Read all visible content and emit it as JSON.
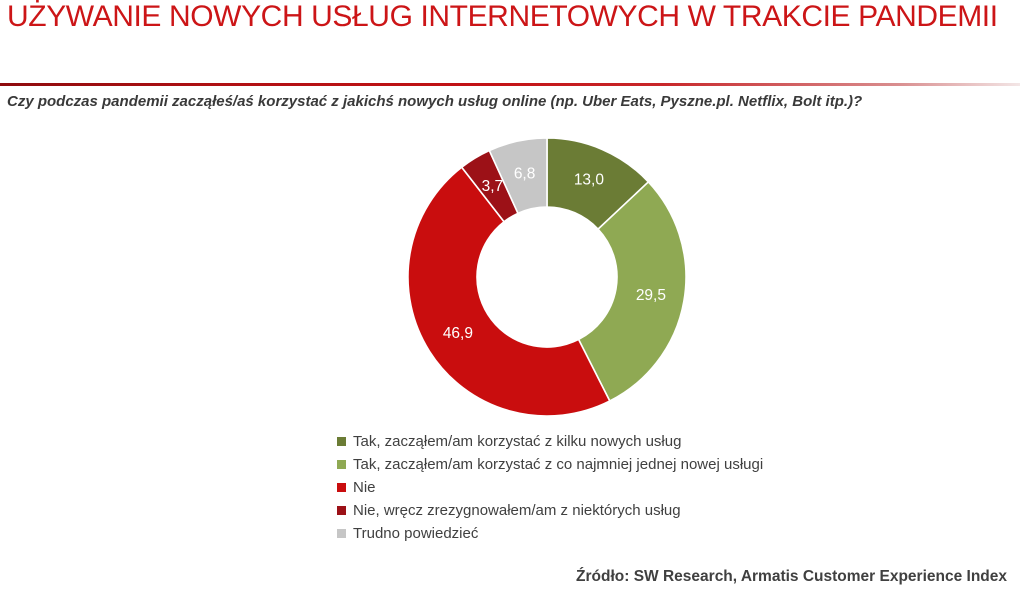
{
  "header": {
    "title": "UŻYWANIE NOWYCH USŁUG INTERNETOWYCH W TRAKCIE PANDEMII"
  },
  "question": "Czy podczas pandemii zacząłeś/aś korzystać z jakichś nowych usług online (np. Uber Eats, Pyszne.pl. Netflix, Bolt itp.)?",
  "source": "Źródło: SW Research, Armatis Customer Experience Index",
  "colors": {
    "title_red": "#cc1517",
    "divider_left": "#8e0b0d",
    "divider_right": "#f3e6e6",
    "text_dark": "#3a3a3a"
  },
  "chart_data": {
    "type": "pie",
    "subtype": "donut",
    "title": "",
    "start_angle_deg": 0,
    "direction": "clockwise",
    "inner_radius_ratio": 0.5,
    "legend_position": "bottom-left",
    "value_label_color": "#ffffff",
    "categories": [
      "Tak, zacząłem/am korzystać z kilku nowych usług",
      "Tak, zacząłem/am korzystać z co najmniej jednej nowej usługi",
      "Nie",
      "Nie, wręcz zrezygnowałem/am z niektórych usług",
      "Trudno powiedzieć"
    ],
    "values": [
      13.0,
      29.5,
      46.9,
      3.7,
      6.8
    ],
    "slices": [
      {
        "label": "Tak, zacząłem/am korzystać z kilku nowych usług",
        "value": 13.0,
        "display": "13,0",
        "color": "#6b7c35"
      },
      {
        "label": "Tak, zacząłem/am korzystać z co najmniej jednej nowej usługi",
        "value": 29.5,
        "display": "29,5",
        "color": "#8fa953"
      },
      {
        "label": "Nie",
        "value": 46.9,
        "display": "46,9",
        "color": "#c90d0e"
      },
      {
        "label": "Nie, wręcz zrezygnowałem/am z niektórych usług",
        "value": 3.7,
        "display": "3,7",
        "color": "#9c1117"
      },
      {
        "label": "Trudno powiedzieć",
        "value": 6.8,
        "display": "6,8",
        "color": "#c6c6c6"
      }
    ]
  }
}
